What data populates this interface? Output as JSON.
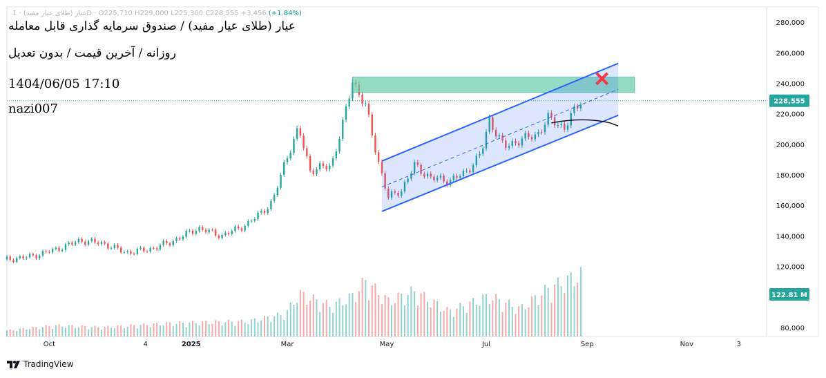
{
  "header": {
    "ohlc_text": "عیار (طلای عیار مفید) · 1D · O225,710 H229,000 L225,300 C228,555 +3,456",
    "change_pct": "(+1.84%)",
    "title": "عیار (طلای عیار مفید) / صندوق سرمایه گذاری قابل معامله",
    "subtitle": "روزانه / آخرین قیمت / بدون تعدیل",
    "datetime": "1404/06/05 17:10",
    "author": "nazi007"
  },
  "footer": {
    "brand": "TradingView",
    "logo_icon": "tradingview-logo-icon"
  },
  "price_badge": "228,555",
  "volume_badge": "122.81 M",
  "colors": {
    "up": "#26a69a",
    "down": "#ef5350",
    "channel": "#2962ff",
    "zone": "#66cdaa",
    "cross": "#f23645"
  },
  "chart_data": {
    "type": "candlestick",
    "title": "",
    "xlabel": "",
    "ylabel": "",
    "x_axis_ticks": [
      "Oct",
      "4",
      "2025",
      "Mar",
      "May",
      "Jul",
      "Sep",
      "Nov",
      "3"
    ],
    "y_axis_ticks": [
      "80,000",
      "120,000",
      "140,000",
      "160,000",
      "180,000",
      "200,000",
      "220,000",
      "240,000",
      "260,000",
      "280,000"
    ],
    "ylim": [
      74000,
      290000
    ],
    "last_price": 228555,
    "last_volume": "122.81 M",
    "series": [
      {
        "name": "price",
        "points": [
          [
            "2024-09-10",
            124500
          ],
          [
            "2024-09-25",
            126500
          ],
          [
            "2024-10-10",
            131000
          ],
          [
            "2024-10-25",
            137000
          ],
          [
            "2024-11-08",
            135000
          ],
          [
            "2024-11-22",
            129000
          ],
          [
            "2024-12-06",
            131000
          ],
          [
            "2024-12-20",
            136000
          ],
          [
            "2025-01-05",
            145000
          ],
          [
            "2025-01-20",
            140000
          ],
          [
            "2025-02-05",
            148000
          ],
          [
            "2025-02-20",
            162000
          ],
          [
            "2025-02-28",
            190000
          ],
          [
            "2025-03-08",
            210000
          ],
          [
            "2025-03-15",
            183000
          ],
          [
            "2025-03-28",
            186000
          ],
          [
            "2025-04-05",
            217000
          ],
          [
            "2025-04-10",
            242000
          ],
          [
            "2025-04-18",
            225000
          ],
          [
            "2025-04-26",
            188000
          ],
          [
            "2025-05-02",
            165000
          ],
          [
            "2025-05-10",
            170000
          ],
          [
            "2025-05-18",
            186000
          ],
          [
            "2025-05-28",
            178000
          ],
          [
            "2025-06-08",
            176000
          ],
          [
            "2025-06-18",
            181000
          ],
          [
            "2025-06-28",
            194000
          ],
          [
            "2025-07-03",
            216000
          ],
          [
            "2025-07-12",
            198000
          ],
          [
            "2025-07-22",
            203000
          ],
          [
            "2025-08-01",
            206000
          ],
          [
            "2025-08-08",
            217000
          ],
          [
            "2025-08-18",
            211000
          ],
          [
            "2025-08-28",
            228555
          ]
        ]
      },
      {
        "name": "volume",
        "note_unit": "M",
        "points": [
          [
            "2024-09-10",
            12
          ],
          [
            "2024-10-10",
            22
          ],
          [
            "2024-11-08",
            18
          ],
          [
            "2024-12-06",
            24
          ],
          [
            "2025-01-05",
            28
          ],
          [
            "2025-02-05",
            30
          ],
          [
            "2025-02-28",
            45
          ],
          [
            "2025-03-08",
            85
          ],
          [
            "2025-03-28",
            60
          ],
          [
            "2025-04-10",
            80
          ],
          [
            "2025-04-18",
            110
          ],
          [
            "2025-05-02",
            70
          ],
          [
            "2025-05-18",
            90
          ],
          [
            "2025-06-08",
            50
          ],
          [
            "2025-07-03",
            80
          ],
          [
            "2025-07-22",
            55
          ],
          [
            "2025-08-08",
            95
          ],
          [
            "2025-08-28",
            122.81
          ]
        ]
      }
    ],
    "annotations": {
      "resistance_zone": [
        234000,
        244000
      ],
      "channel_upper": [
        [
          "2025-04-28",
          189000
        ],
        [
          "2025-09-20",
          253000
        ]
      ],
      "channel_lower": [
        [
          "2025-04-28",
          156000
        ],
        [
          "2025-09-20",
          219000
        ]
      ],
      "channel_mid": [
        [
          "2025-04-28",
          172000
        ],
        [
          "2025-09-20",
          236000
        ]
      ]
    }
  }
}
